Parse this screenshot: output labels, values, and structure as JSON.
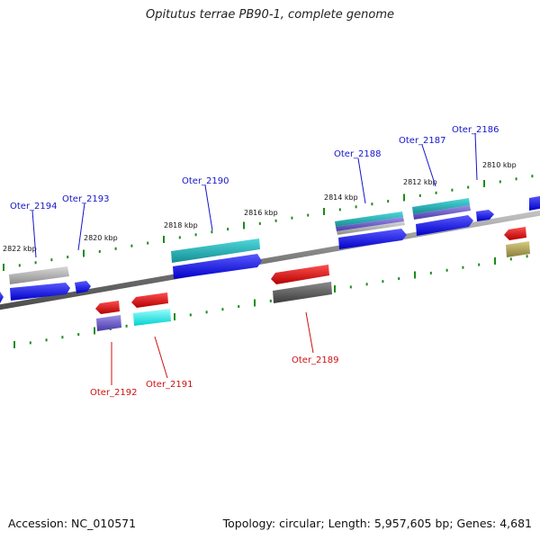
{
  "title": "Opitutus terrae PB90-1, complete genome",
  "accession_label": "Accession: NC_010571",
  "summary_label": "Topology: circular; Length: 5,957,605 bp; Genes: 4,681",
  "colors": {
    "backbone": "#808080",
    "tick": "#1a8c1a",
    "label_forward": "#1515c8",
    "label_reverse": "#cc1111",
    "blue": "#1414e6",
    "gray": "#a8a8a8",
    "teal": "#1fbcc0",
    "purple": "#6a5acd",
    "red": "#e61414",
    "cyan": "#18f0f0",
    "darkgray": "#5e5e5e",
    "olive": "#b5a85a"
  },
  "scale_labels": [
    "2822 kbp",
    "2820 kbp",
    "2818 kbp",
    "2816 kbp",
    "2814 kbp",
    "2812 kbp",
    "2810 kbp"
  ],
  "forward_labels": [
    "Oter_2194",
    "Oter_2193",
    "Oter_2190",
    "Oter_2188",
    "Oter_2187",
    "Oter_2186"
  ],
  "reverse_labels": [
    "Oter_2192",
    "Oter_2191",
    "Oter_2189"
  ]
}
